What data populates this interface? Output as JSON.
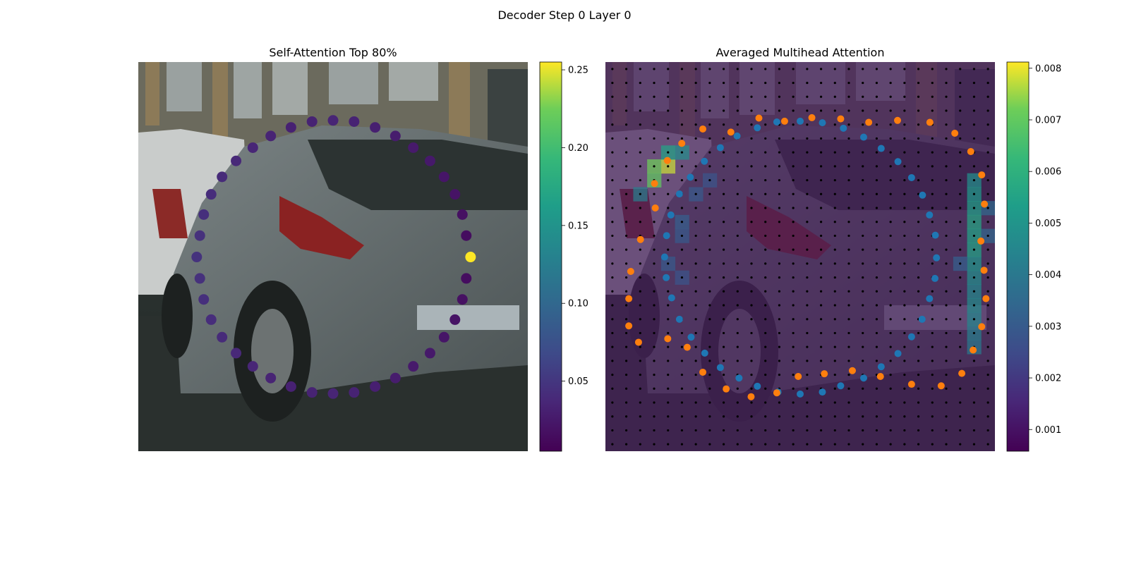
{
  "suptitle": "Decoder Step 0 Layer 0",
  "colors": {
    "blue_points": "#1f77b4",
    "orange_points": "#ff7f0e",
    "grid_dots": "#000000",
    "colormap": "viridis"
  },
  "chart_data": [
    {
      "type": "scatter",
      "title": "Self-Attention Top 80%",
      "background": "photo of parked grey hatchback car on street",
      "colorbar": {
        "min": 0.005,
        "max": 0.255,
        "ticks": [
          "0.05",
          "0.10",
          "0.15",
          "0.20",
          "0.25"
        ],
        "tick_values": [
          0.05,
          0.1,
          0.15,
          0.2,
          0.25
        ],
        "colormap": "viridis"
      },
      "points": [
        {
          "x": 0.5,
          "y": 0.15,
          "v": 0.035
        },
        {
          "x": 0.554,
          "y": 0.153,
          "v": 0.033
        },
        {
          "x": 0.608,
          "y": 0.168,
          "v": 0.03
        },
        {
          "x": 0.66,
          "y": 0.19,
          "v": 0.028
        },
        {
          "x": 0.706,
          "y": 0.22,
          "v": 0.026
        },
        {
          "x": 0.749,
          "y": 0.254,
          "v": 0.025
        },
        {
          "x": 0.785,
          "y": 0.295,
          "v": 0.022
        },
        {
          "x": 0.813,
          "y": 0.34,
          "v": 0.02
        },
        {
          "x": 0.832,
          "y": 0.392,
          "v": 0.018
        },
        {
          "x": 0.842,
          "y": 0.446,
          "v": 0.015
        },
        {
          "x": 0.853,
          "y": 0.501,
          "v": 0.255
        },
        {
          "x": 0.842,
          "y": 0.556,
          "v": 0.015
        },
        {
          "x": 0.832,
          "y": 0.61,
          "v": 0.018
        },
        {
          "x": 0.813,
          "y": 0.662,
          "v": 0.02
        },
        {
          "x": 0.785,
          "y": 0.707,
          "v": 0.022
        },
        {
          "x": 0.749,
          "y": 0.748,
          "v": 0.025
        },
        {
          "x": 0.706,
          "y": 0.782,
          "v": 0.026
        },
        {
          "x": 0.66,
          "y": 0.812,
          "v": 0.028
        },
        {
          "x": 0.608,
          "y": 0.834,
          "v": 0.03
        },
        {
          "x": 0.554,
          "y": 0.849,
          "v": 0.033
        },
        {
          "x": 0.5,
          "y": 0.852,
          "v": 0.035
        },
        {
          "x": 0.446,
          "y": 0.849,
          "v": 0.033
        },
        {
          "x": 0.392,
          "y": 0.834,
          "v": 0.032
        },
        {
          "x": 0.34,
          "y": 0.812,
          "v": 0.034
        },
        {
          "x": 0.294,
          "y": 0.782,
          "v": 0.036
        },
        {
          "x": 0.251,
          "y": 0.748,
          "v": 0.038
        },
        {
          "x": 0.215,
          "y": 0.707,
          "v": 0.04
        },
        {
          "x": 0.187,
          "y": 0.662,
          "v": 0.042
        },
        {
          "x": 0.168,
          "y": 0.61,
          "v": 0.044
        },
        {
          "x": 0.158,
          "y": 0.556,
          "v": 0.045
        },
        {
          "x": 0.15,
          "y": 0.501,
          "v": 0.046
        },
        {
          "x": 0.158,
          "y": 0.446,
          "v": 0.045
        },
        {
          "x": 0.168,
          "y": 0.392,
          "v": 0.044
        },
        {
          "x": 0.187,
          "y": 0.34,
          "v": 0.042
        },
        {
          "x": 0.215,
          "y": 0.295,
          "v": 0.04
        },
        {
          "x": 0.251,
          "y": 0.254,
          "v": 0.038
        },
        {
          "x": 0.294,
          "y": 0.22,
          "v": 0.036
        },
        {
          "x": 0.34,
          "y": 0.19,
          "v": 0.034
        },
        {
          "x": 0.392,
          "y": 0.168,
          "v": 0.032
        },
        {
          "x": 0.446,
          "y": 0.153,
          "v": 0.033
        }
      ]
    },
    {
      "type": "heatmap",
      "title": "Averaged Multihead Attention",
      "background": "dimmed photo of parked car with attention heatmap overlay",
      "colorbar": {
        "min": 0.00058,
        "max": 0.00812,
        "ticks": [
          "0.001",
          "0.002",
          "0.003",
          "0.004",
          "0.005",
          "0.006",
          "0.007",
          "0.008"
        ],
        "tick_values": [
          0.001,
          0.002,
          0.003,
          0.004,
          0.005,
          0.006,
          0.007,
          0.008
        ],
        "colormap": "viridis"
      },
      "grid": {
        "cols": 28,
        "rows": 28
      },
      "hotspots": [
        {
          "col": 4,
          "row": 7,
          "v": 0.0078
        },
        {
          "col": 3,
          "row": 7,
          "v": 0.0072
        },
        {
          "col": 3,
          "row": 8,
          "v": 0.007
        },
        {
          "col": 4,
          "row": 6,
          "v": 0.0055
        },
        {
          "col": 5,
          "row": 6,
          "v": 0.0048
        },
        {
          "col": 2,
          "row": 9,
          "v": 0.0042
        },
        {
          "col": 26,
          "row": 8,
          "v": 0.0048
        },
        {
          "col": 26,
          "row": 9,
          "v": 0.0052
        },
        {
          "col": 26,
          "row": 10,
          "v": 0.0054
        },
        {
          "col": 26,
          "row": 11,
          "v": 0.0056
        },
        {
          "col": 26,
          "row": 12,
          "v": 0.0055
        },
        {
          "col": 26,
          "row": 13,
          "v": 0.0055
        },
        {
          "col": 26,
          "row": 14,
          "v": 0.005
        },
        {
          "col": 26,
          "row": 15,
          "v": 0.0048
        },
        {
          "col": 26,
          "row": 16,
          "v": 0.0046
        },
        {
          "col": 26,
          "row": 17,
          "v": 0.0047
        },
        {
          "col": 26,
          "row": 18,
          "v": 0.0045
        },
        {
          "col": 26,
          "row": 19,
          "v": 0.0042
        },
        {
          "col": 26,
          "row": 20,
          "v": 0.004
        },
        {
          "col": 27,
          "row": 10,
          "v": 0.0035
        },
        {
          "col": 27,
          "row": 12,
          "v": 0.0034
        },
        {
          "col": 25,
          "row": 14,
          "v": 0.0032
        },
        {
          "col": 5,
          "row": 11,
          "v": 0.0032
        },
        {
          "col": 5,
          "row": 12,
          "v": 0.003
        },
        {
          "col": 4,
          "row": 14,
          "v": 0.003
        },
        {
          "col": 5,
          "row": 15,
          "v": 0.0028
        },
        {
          "col": 6,
          "row": 9,
          "v": 0.003
        },
        {
          "col": 7,
          "row": 8,
          "v": 0.0028
        }
      ],
      "blue_points": [
        [
          0.44,
          0.154
        ],
        [
          0.5,
          0.152
        ],
        [
          0.557,
          0.156
        ],
        [
          0.611,
          0.17
        ],
        [
          0.663,
          0.193
        ],
        [
          0.708,
          0.222
        ],
        [
          0.751,
          0.256
        ],
        [
          0.786,
          0.297
        ],
        [
          0.814,
          0.342
        ],
        [
          0.832,
          0.393
        ],
        [
          0.847,
          0.445
        ],
        [
          0.85,
          0.503
        ],
        [
          0.846,
          0.556
        ],
        [
          0.832,
          0.608
        ],
        [
          0.813,
          0.661
        ],
        [
          0.786,
          0.706
        ],
        [
          0.751,
          0.749
        ],
        [
          0.708,
          0.783
        ],
        [
          0.663,
          0.812
        ],
        [
          0.604,
          0.832
        ],
        [
          0.557,
          0.848
        ],
        [
          0.5,
          0.853
        ],
        [
          0.443,
          0.848
        ],
        [
          0.39,
          0.833
        ],
        [
          0.343,
          0.812
        ],
        [
          0.295,
          0.785
        ],
        [
          0.255,
          0.748
        ],
        [
          0.22,
          0.707
        ],
        [
          0.19,
          0.661
        ],
        [
          0.17,
          0.606
        ],
        [
          0.156,
          0.554
        ],
        [
          0.152,
          0.501
        ],
        [
          0.157,
          0.446
        ],
        [
          0.168,
          0.393
        ],
        [
          0.19,
          0.339
        ],
        [
          0.218,
          0.296
        ],
        [
          0.254,
          0.255
        ],
        [
          0.295,
          0.22
        ],
        [
          0.338,
          0.19
        ],
        [
          0.39,
          0.169
        ]
      ],
      "orange_points": [
        [
          0.46,
          0.152
        ],
        [
          0.53,
          0.143
        ],
        [
          0.604,
          0.146
        ],
        [
          0.676,
          0.155
        ],
        [
          0.75,
          0.15
        ],
        [
          0.833,
          0.155
        ],
        [
          0.897,
          0.183
        ],
        [
          0.938,
          0.23
        ],
        [
          0.966,
          0.29
        ],
        [
          0.973,
          0.365
        ],
        [
          0.964,
          0.46
        ],
        [
          0.972,
          0.535
        ],
        [
          0.977,
          0.608
        ],
        [
          0.966,
          0.68
        ],
        [
          0.944,
          0.74
        ],
        [
          0.915,
          0.8
        ],
        [
          0.862,
          0.832
        ],
        [
          0.786,
          0.828
        ],
        [
          0.706,
          0.808
        ],
        [
          0.634,
          0.793
        ],
        [
          0.562,
          0.801
        ],
        [
          0.495,
          0.808
        ],
        [
          0.44,
          0.85
        ],
        [
          0.374,
          0.86
        ],
        [
          0.31,
          0.84
        ],
        [
          0.25,
          0.797
        ],
        [
          0.21,
          0.733
        ],
        [
          0.16,
          0.711
        ],
        [
          0.085,
          0.72
        ],
        [
          0.06,
          0.678
        ],
        [
          0.06,
          0.608
        ],
        [
          0.065,
          0.538
        ],
        [
          0.09,
          0.456
        ],
        [
          0.128,
          0.375
        ],
        [
          0.126,
          0.312
        ],
        [
          0.159,
          0.253
        ],
        [
          0.196,
          0.209
        ],
        [
          0.25,
          0.172
        ],
        [
          0.322,
          0.18
        ],
        [
          0.394,
          0.144
        ]
      ]
    }
  ]
}
